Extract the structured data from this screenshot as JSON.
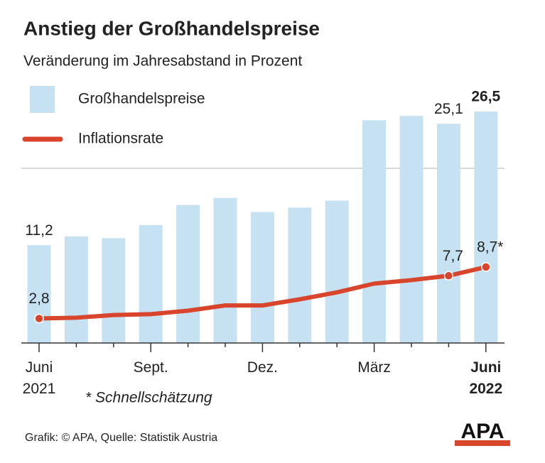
{
  "chart_data": {
    "type": "bar_line",
    "title": "Anstieg der Großhandelspreise",
    "subtitle": "Veränderung im Jahresabstand in Prozent",
    "categories": [
      "Juni 2021",
      null,
      null,
      "Sept.",
      null,
      null,
      "Dez.",
      null,
      null,
      "März",
      null,
      null,
      "Juni 2022"
    ],
    "series": [
      {
        "name": "Großhandelspreise",
        "type": "bar",
        "color": "#c6e1f2",
        "values": [
          11.2,
          12.2,
          12.0,
          13.5,
          15.8,
          16.6,
          15.0,
          15.5,
          16.3,
          25.5,
          26.0,
          25.1,
          26.5
        ],
        "value_labels": [
          "11,2",
          null,
          null,
          null,
          null,
          null,
          null,
          null,
          null,
          null,
          null,
          "25,1",
          "26,5"
        ]
      },
      {
        "name": "Inflationsrate",
        "type": "line",
        "color": "#d8452c",
        "values": [
          2.8,
          2.9,
          3.2,
          3.3,
          3.7,
          4.3,
          4.3,
          5.0,
          5.8,
          6.8,
          7.2,
          7.7,
          8.7
        ],
        "value_labels": [
          "2,8",
          null,
          null,
          null,
          null,
          null,
          null,
          null,
          null,
          null,
          null,
          "7,7",
          "8,7*"
        ]
      }
    ],
    "ylim": [
      0,
      30
    ],
    "grid_lines": [
      20
    ],
    "footnote": "* Schnellschätzung",
    "source": "Grafik: © APA, Quelle: Statistik Austria",
    "logo": "APA"
  }
}
